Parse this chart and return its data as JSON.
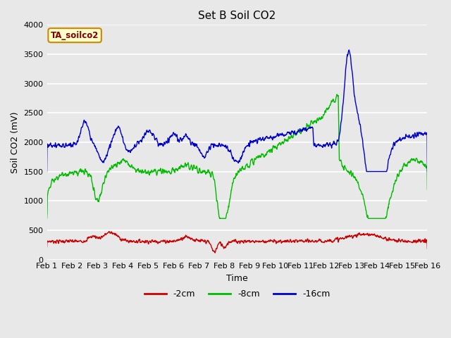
{
  "title": "Set B Soil CO2",
  "xlabel": "Time",
  "ylabel": "Soil CO2 (mV)",
  "annotation": "TA_soilco2",
  "ylim": [
    0,
    4000
  ],
  "yticks": [
    0,
    500,
    1000,
    1500,
    2000,
    2500,
    3000,
    3500,
    4000
  ],
  "xtick_labels": [
    "Feb 1",
    "Feb 2",
    "Feb 3",
    "Feb 4",
    "Feb 5",
    "Feb 6",
    "Feb 7",
    "Feb 8",
    "Feb 9",
    "Feb 10",
    "Feb 11",
    "Feb 12",
    "Feb 13",
    "Feb 14",
    "Feb 15",
    "Feb 16"
  ],
  "line_colors": [
    "#cc0000",
    "#00bb00",
    "#0000cc"
  ],
  "line_labels": [
    "-2cm",
    "-8cm",
    "-16cm"
  ],
  "line_width": 1.0,
  "bg_color": "#e8e8e8",
  "grid_color": "#ffffff",
  "annotation_bg": "#ffffcc",
  "annotation_border": "#cc8800",
  "annotation_color": "#880000"
}
